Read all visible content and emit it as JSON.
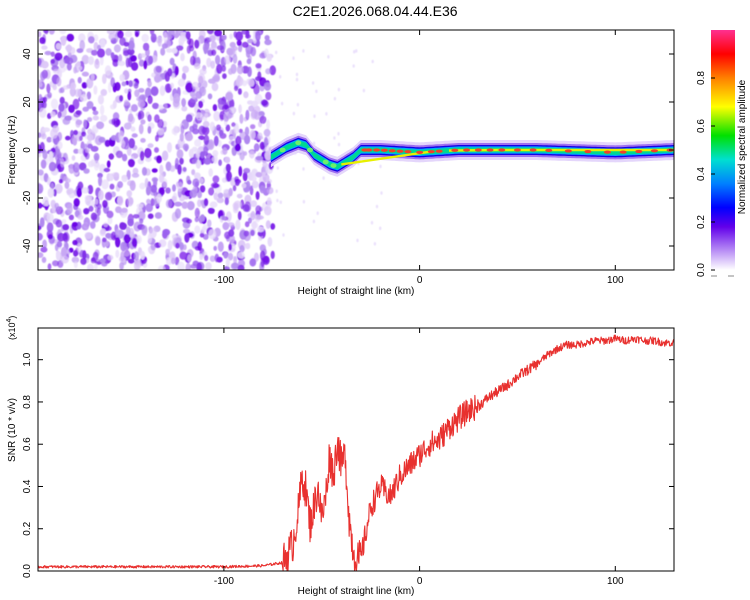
{
  "title": "C2E1.2026.068.04.44.E36",
  "chart_data": [
    {
      "type": "heatmap",
      "xlabel": "Height of straight line (km)",
      "ylabel": "Frequency (Hz)",
      "xlim": [
        -195,
        130
      ],
      "ylim": [
        -50,
        50
      ],
      "xticks": [
        -100,
        0,
        100
      ],
      "yticks": [
        -40,
        -20,
        0,
        20,
        40
      ],
      "noise_region_x": [
        -195,
        -75
      ],
      "signal_ridge": {
        "x": [
          -76,
          -72,
          -68,
          -62,
          -58,
          -54,
          -50,
          -46,
          -42,
          -38,
          -34,
          -30,
          -20,
          0,
          20,
          60,
          100,
          130
        ],
        "frequency": [
          -3,
          -1,
          1,
          3,
          2,
          -2,
          -4,
          -6,
          -7,
          -5,
          -3,
          0,
          0,
          -1,
          0,
          0,
          -1,
          0
        ]
      },
      "colorbar": {
        "label": "Normalized spectral amplitude",
        "range": [
          0,
          1
        ],
        "ticks": [
          0.0,
          0.2,
          0.4,
          0.6,
          0.8
        ]
      }
    },
    {
      "type": "line",
      "xlabel": "Height of straight line (km)",
      "ylabel": "SNR (10 * v/v)",
      "multiplier": "(x10",
      "multiplier_exp": "4",
      "multiplier_close": ")",
      "xlim": [
        -195,
        130
      ],
      "ylim": [
        0,
        1.15
      ],
      "xticks": [
        -100,
        0,
        100
      ],
      "yticks": [
        0.0,
        0.2,
        0.4,
        0.6,
        0.8,
        1.0
      ],
      "series": [
        {
          "name": "SNR",
          "color": "#e8312f",
          "x": [
            -195,
            -150,
            -100,
            -80,
            -70,
            -65,
            -62,
            -60,
            -58,
            -56,
            -54,
            -52,
            -50,
            -48,
            -46,
            -44,
            -42,
            -40,
            -38,
            -36,
            -34,
            -32,
            -30,
            -25,
            -20,
            -15,
            -10,
            -5,
            0,
            5,
            10,
            15,
            20,
            25,
            30,
            35,
            40,
            45,
            50,
            55,
            60,
            65,
            70,
            75,
            80,
            85,
            90,
            95,
            100,
            105,
            110,
            115,
            120,
            125,
            130
          ],
          "y": [
            0.02,
            0.02,
            0.02,
            0.025,
            0.04,
            0.12,
            0.28,
            0.45,
            0.38,
            0.22,
            0.3,
            0.4,
            0.25,
            0.35,
            0.55,
            0.45,
            0.62,
            0.5,
            0.55,
            0.25,
            0.1,
            0.05,
            0.06,
            0.3,
            0.4,
            0.35,
            0.45,
            0.5,
            0.55,
            0.6,
            0.62,
            0.68,
            0.72,
            0.76,
            0.78,
            0.82,
            0.85,
            0.88,
            0.92,
            0.95,
            0.98,
            1.02,
            1.05,
            1.07,
            1.07,
            1.08,
            1.09,
            1.09,
            1.1,
            1.09,
            1.1,
            1.09,
            1.09,
            1.08,
            1.08
          ]
        }
      ]
    }
  ]
}
